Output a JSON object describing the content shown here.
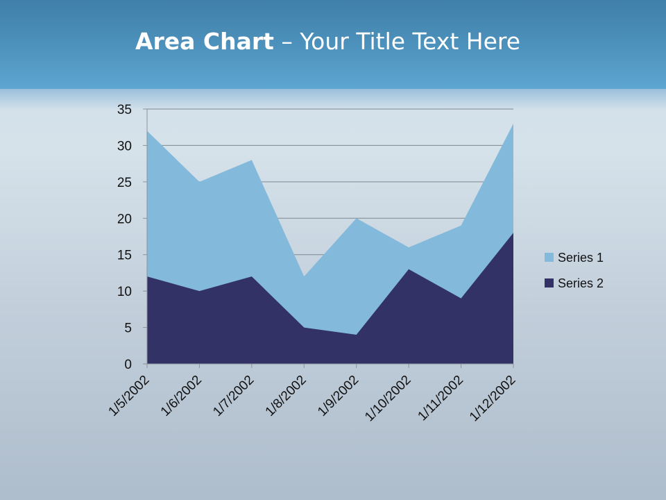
{
  "title": {
    "bold": "Area Chart",
    "rest": " – Your Title Text Here"
  },
  "chart_data": {
    "type": "area",
    "title": "",
    "xlabel": "",
    "ylabel": "",
    "categories": [
      "1/5/2002",
      "1/6/2002",
      "1/7/2002",
      "1/8/2002",
      "1/9/2002",
      "1/10/2002",
      "1/11/2002",
      "1/12/2002"
    ],
    "series": [
      {
        "name": "Series 1",
        "color": "#83b9db",
        "values": [
          32,
          25,
          28,
          12,
          20,
          16,
          19,
          33
        ]
      },
      {
        "name": "Series 2",
        "color": "#333266",
        "values": [
          12,
          10,
          12,
          5,
          4,
          13,
          9,
          18
        ]
      }
    ],
    "ylim": [
      0,
      35
    ],
    "yticks": [
      0,
      5,
      10,
      15,
      20,
      25,
      30,
      35
    ],
    "grid": true,
    "legend": "right"
  }
}
